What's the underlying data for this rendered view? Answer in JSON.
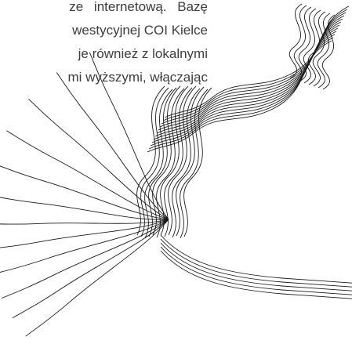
{
  "text": {
    "lines": [
      "ze internetową. Bazę",
      "westycyjnej COI Kielce",
      "je również z lokalnymi",
      "mi wyższymi, włączając"
    ]
  }
}
